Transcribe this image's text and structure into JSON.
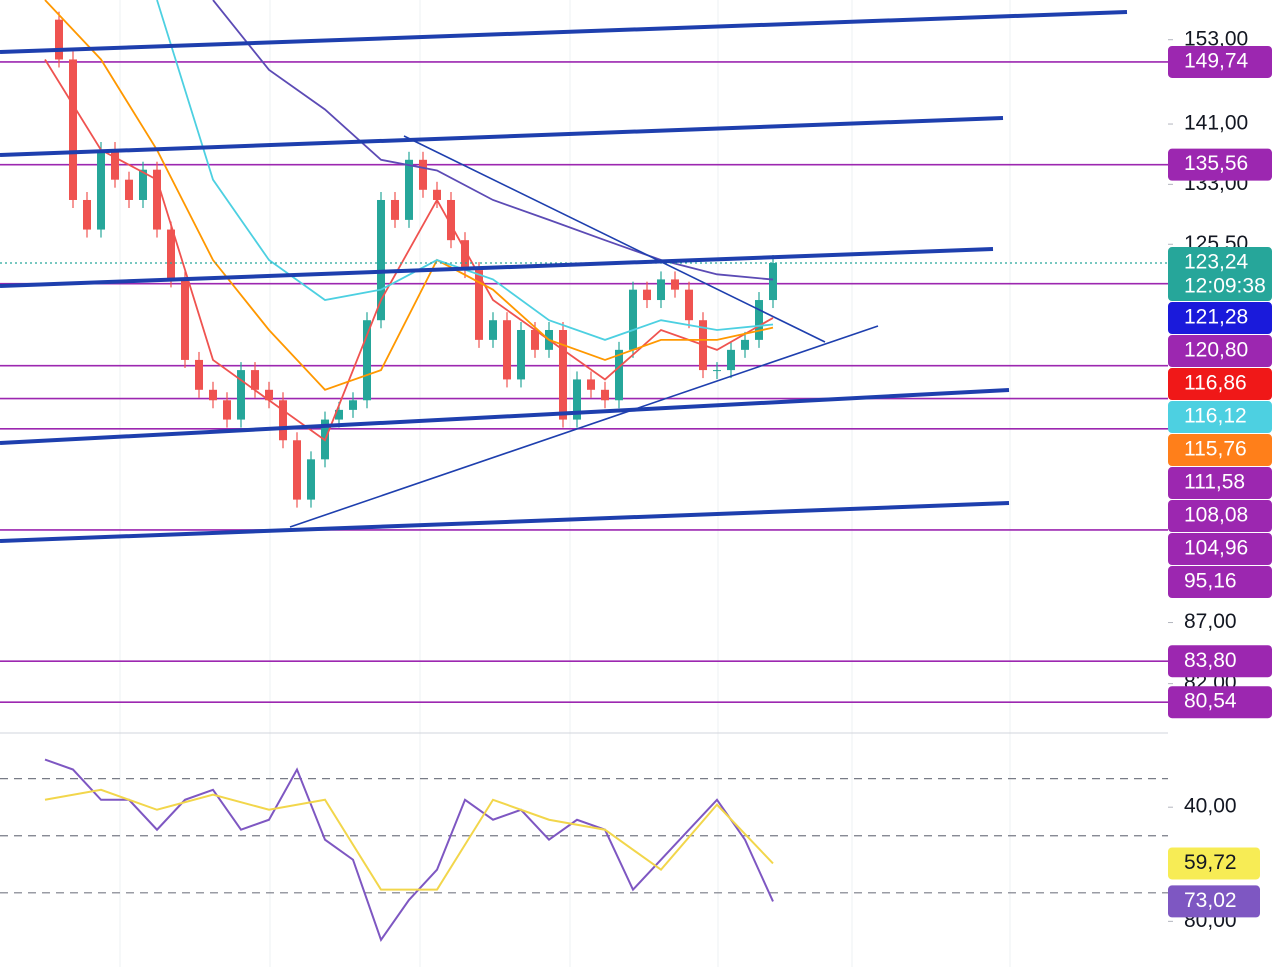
{
  "chart_data": [
    {
      "type": "candlestick",
      "log_scale": true,
      "ylim": [
        159,
        78.4
      ],
      "yticks": [
        {
          "value": 153,
          "label": "153,00"
        },
        {
          "value": 141,
          "label": "141,00"
        },
        {
          "value": 133,
          "label": "133,00"
        },
        {
          "value": 125.5,
          "label": "125,50"
        },
        {
          "value": 87,
          "label": "87,00"
        },
        {
          "value": 82,
          "label": "82,00"
        }
      ],
      "up_color": "#26a69a",
      "down_color": "#ef5350",
      "close": [
        156.0,
        150.1,
        131.0,
        127.3,
        137.5,
        133.6,
        131.0,
        134.9,
        127.3,
        121.3,
        112.2,
        109.0,
        107.9,
        105.9,
        111.1,
        109.0,
        107.9,
        103.8,
        98.0,
        101.9,
        105.9,
        106.9,
        107.9,
        116.6,
        131.0,
        128.5,
        136.2,
        132.3,
        131.0,
        126.0,
        122.4,
        114.4,
        116.6,
        110.1,
        115.5,
        113.3,
        115.5,
        105.9,
        110.1,
        109.0,
        107.9,
        113.3,
        120.1,
        118.9,
        121.3,
        120.1,
        116.6,
        111.1,
        111.1,
        113.3,
        114.4,
        118.9,
        123.24
      ],
      "series": [
        {
          "color": "#ef5350",
          "values": [
            150.1,
            137.5,
            133.6,
            112.2,
            107.9,
            103.8,
            118.9,
            131.0,
            118.9,
            114.4,
            110.1,
            115.5,
            113.3,
            116.86
          ]
        },
        {
          "color": "#ff9800",
          "values": [
            159.0,
            150.1,
            137.5,
            123.6,
            115.5,
            109.0,
            111.1,
            123.6,
            120.1,
            114.4,
            112.2,
            114.4,
            114.4,
            115.76
          ]
        },
        {
          "color": "#4dd0e1",
          "values": [
            null,
            null,
            159.0,
            133.6,
            123.6,
            118.9,
            120.1,
            123.6,
            121.3,
            116.6,
            114.4,
            116.6,
            115.5,
            116.12
          ]
        },
        {
          "color": "#5c4bb5",
          "values": [
            null,
            null,
            null,
            159.0,
            148.6,
            143.0,
            136.2,
            134.8,
            131.0,
            128.5,
            126.0,
            123.6,
            121.9,
            121.28
          ]
        }
      ],
      "level_color": "#9c27b0",
      "levels": [
        {
          "value": 149.74,
          "label": "149,74"
        },
        {
          "value": 135.56,
          "label": "135,56"
        },
        {
          "value": 120.8,
          "label": "120,80"
        },
        {
          "value": 111.58,
          "label": "111,58"
        },
        {
          "value": 108.08,
          "label": "108,08"
        },
        {
          "value": 104.96,
          "label": "104,96"
        },
        {
          "value": 95.16,
          "label": "95,16"
        },
        {
          "value": 83.8,
          "label": "83,80"
        },
        {
          "value": 80.54,
          "label": "80,54"
        }
      ],
      "price_tags": [
        {
          "value": 123.24,
          "label": "123,24",
          "countdown": "12:09:38",
          "color": "#26a69a"
        },
        {
          "value": 121.28,
          "label": "121,28",
          "color": "#1a1adb"
        },
        {
          "value": 116.86,
          "label": "116,86",
          "color": "#f01818"
        },
        {
          "value": 116.12,
          "label": "116,12",
          "color": "#4dd0e1"
        },
        {
          "value": 115.76,
          "label": "115,76",
          "color": "#ff7f1a"
        }
      ]
    },
    {
      "type": "line",
      "ylim": [
        14,
        96
      ],
      "yticks": [
        {
          "value": 80,
          "label": "80,00"
        },
        {
          "value": 40,
          "label": "40,00"
        }
      ],
      "bands": [
        70,
        50,
        30
      ],
      "series": [
        {
          "color": "#7e57c2",
          "values": [
            23.3,
            26.8,
            37.4,
            37.4,
            47.9,
            37.4,
            33.9,
            47.9,
            44.4,
            26.8,
            51.4,
            58.4,
            86.5,
            72.5,
            61.9,
            37.4,
            44.4,
            40.9,
            51.4,
            44.4,
            47.9,
            68.9,
            58.4,
            47.9,
            37.4,
            51.4,
            73.02
          ]
        },
        {
          "color": "#f2d64b",
          "values": [
            37.4,
            33.9,
            40.9,
            35.6,
            40.9,
            37.4,
            68.9,
            68.9,
            37.4,
            44.4,
            47.9,
            61.9,
            39.1,
            59.72
          ]
        }
      ],
      "tags": [
        {
          "value": 73.02,
          "label": "73,02",
          "color": "#7e57c2",
          "text_color": "#ffffff"
        },
        {
          "value": 59.72,
          "label": "59,72",
          "color": "#f7ec55",
          "text_color": "#131722"
        }
      ]
    }
  ]
}
